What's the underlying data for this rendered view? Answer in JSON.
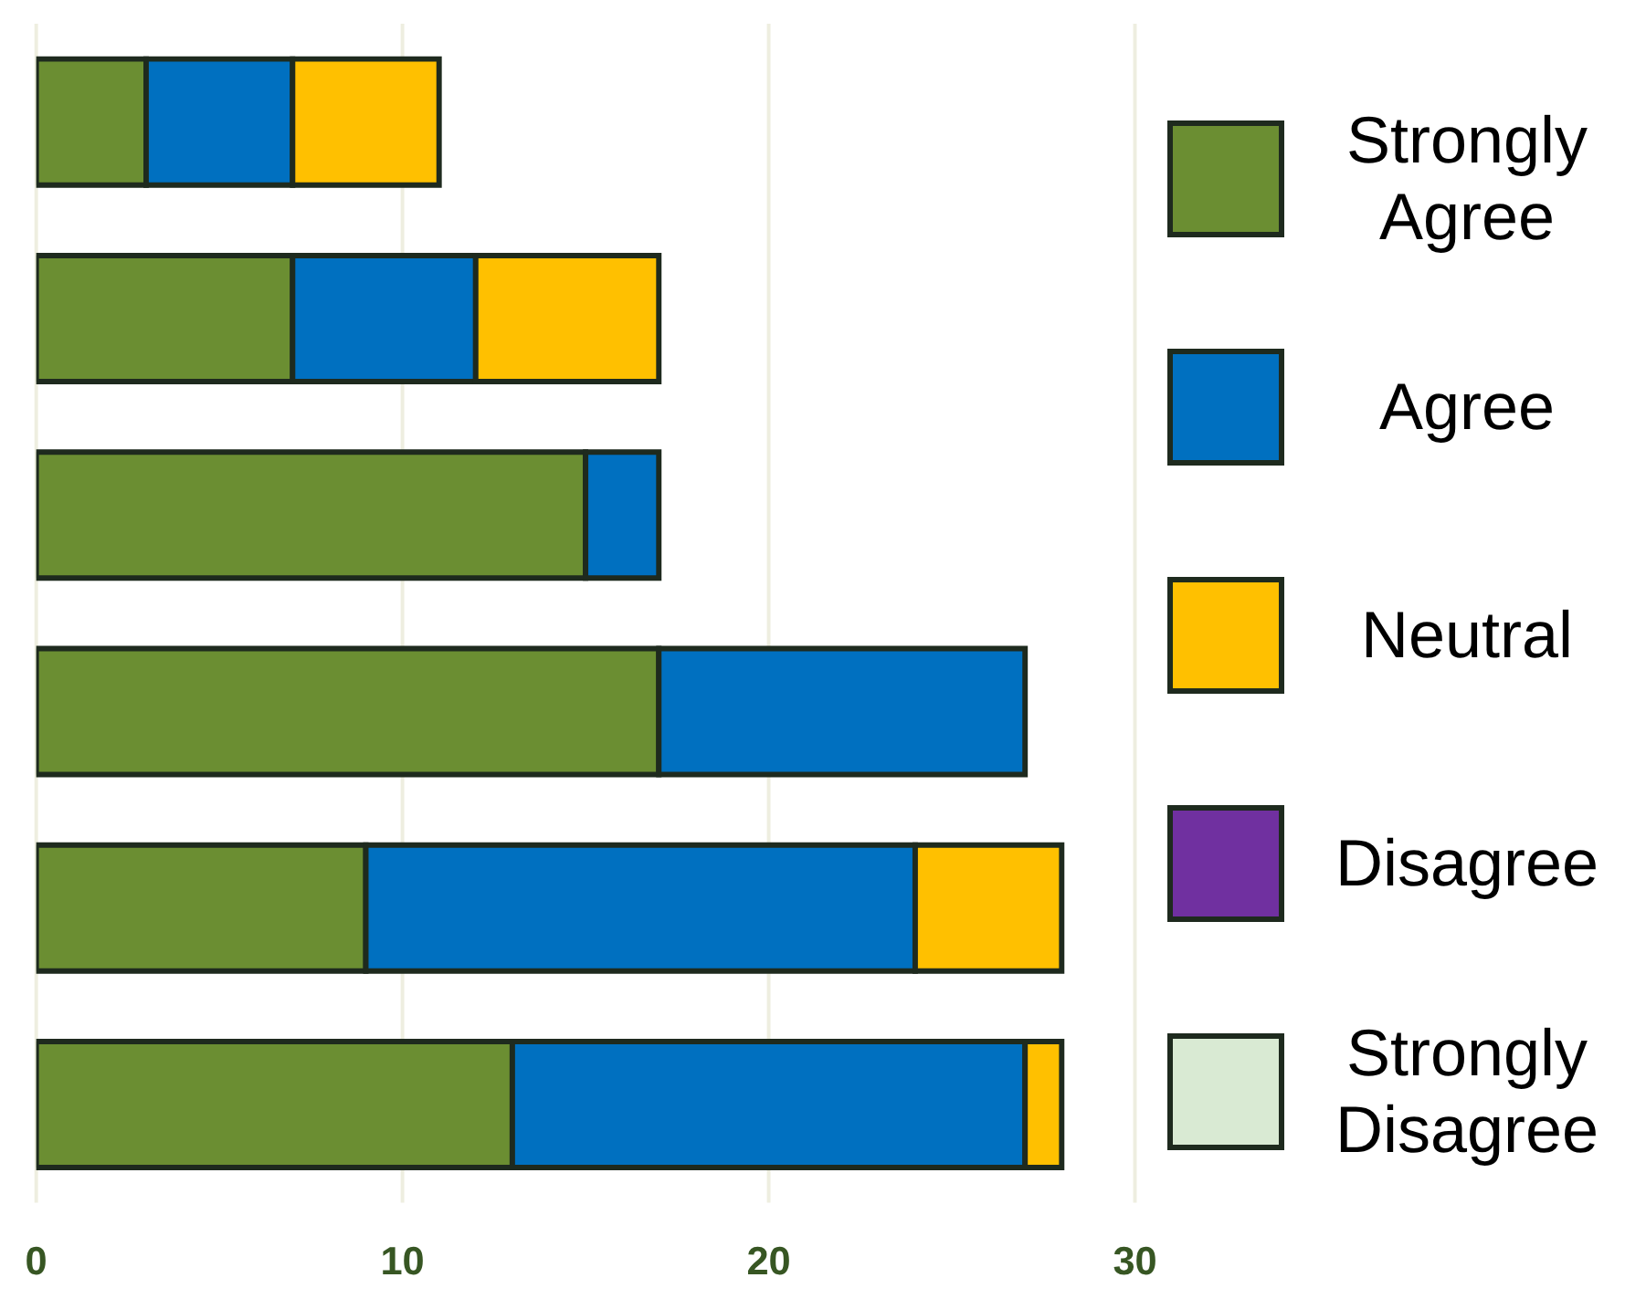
{
  "chart_data": {
    "type": "bar",
    "orientation": "horizontal",
    "stacked": true,
    "categories": [
      null,
      null,
      null,
      null,
      null,
      null
    ],
    "series": [
      {
        "name": "Strongly Agree",
        "color": "#6b8e32",
        "values": [
          3,
          7,
          15,
          17,
          9,
          13
        ]
      },
      {
        "name": "Agree",
        "color": "#0070c0",
        "values": [
          4,
          5,
          2,
          10,
          15,
          14
        ]
      },
      {
        "name": "Neutral",
        "color": "#ffc000",
        "values": [
          4,
          5,
          0,
          0,
          4,
          1
        ]
      },
      {
        "name": "Disagree",
        "color": "#7030a0",
        "values": [
          0,
          0,
          0,
          0,
          0,
          0
        ]
      },
      {
        "name": "Strongly Disagree",
        "color": "#d9ead3",
        "values": [
          0,
          0,
          0,
          0,
          0,
          0
        ]
      }
    ],
    "xlim": [
      0,
      30
    ],
    "xticks": [
      0,
      10,
      20,
      30
    ],
    "grid": "x",
    "legend": "right"
  }
}
